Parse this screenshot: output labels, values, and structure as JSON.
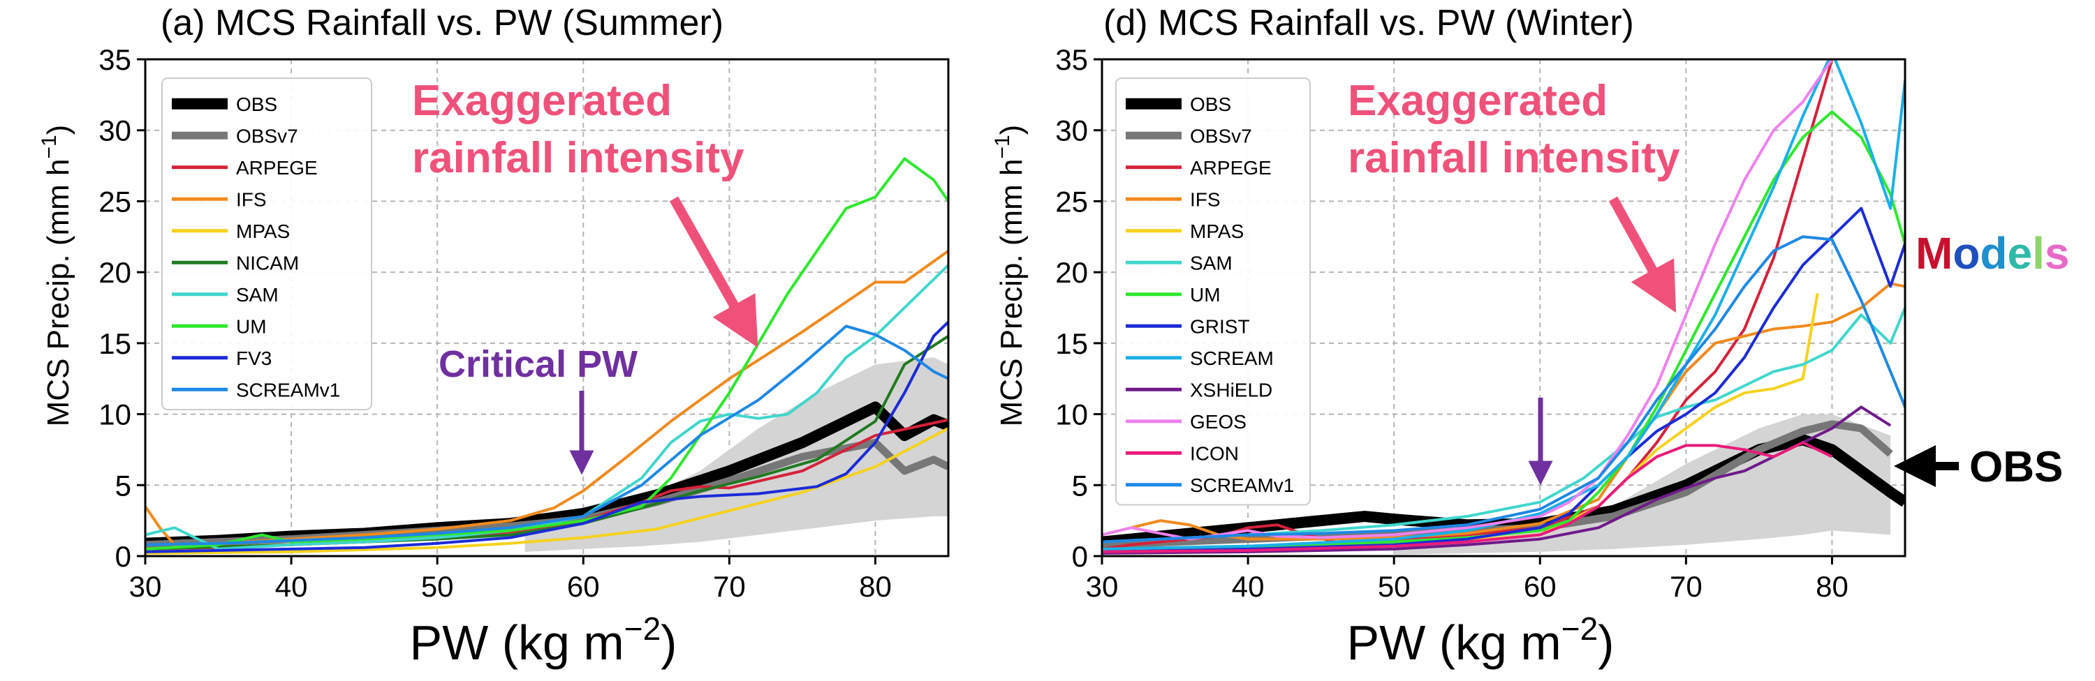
{
  "chart_data": [
    {
      "type": "line",
      "title": "(a) MCS Rainfall vs. PW (Summer)",
      "xlabel": "PW (kg m",
      "xlabel_sup": "−2",
      "ylabel": "MCS Precip. (mm h",
      "ylabel_sup": "−1",
      "xlim": [
        30,
        85
      ],
      "ylim": [
        0,
        35
      ],
      "xticks": [
        "30",
        "40",
        "50",
        "60",
        "70",
        "80"
      ],
      "yticks": [
        "0",
        "5",
        "10",
        "15",
        "20",
        "25",
        "30",
        "35"
      ],
      "grid": true,
      "legend_position": "top-left",
      "annotations": {
        "exaggerated_line1": "Exaggerated",
        "exaggerated_line2": "rainfall intensity",
        "critical": "Critical PW"
      },
      "obs_band": {
        "x": [
          56,
          60,
          64,
          68,
          72,
          76,
          80,
          84,
          85
        ],
        "lower": [
          0.3,
          0.5,
          0.7,
          1.0,
          1.5,
          2.0,
          2.5,
          2.8,
          2.8
        ],
        "upper": [
          2.0,
          3.0,
          4.0,
          6.0,
          9.0,
          11.5,
          13.5,
          14.0,
          13.5
        ]
      },
      "series": [
        {
          "name": "OBS",
          "color": "#000000",
          "width": 16,
          "x": [
            30,
            35,
            40,
            45,
            50,
            55,
            60,
            65,
            70,
            75,
            80,
            82,
            84,
            85
          ],
          "y": [
            0.9,
            1.1,
            1.4,
            1.6,
            2.0,
            2.3,
            3.0,
            4.3,
            6.0,
            8.0,
            10.5,
            8.5,
            9.6,
            9.2
          ]
        },
        {
          "name": "OBSv7",
          "color": "#777777",
          "width": 11,
          "x": [
            30,
            35,
            40,
            45,
            50,
            55,
            60,
            65,
            70,
            75,
            80,
            82,
            84,
            85
          ],
          "y": [
            0.8,
            1.0,
            1.2,
            1.5,
            1.8,
            2.1,
            2.6,
            3.8,
            5.3,
            7.0,
            8.0,
            6.0,
            6.8,
            6.3
          ]
        },
        {
          "name": "ARPEGE",
          "color": "#d6213a",
          "width": 4,
          "x": [
            30,
            35,
            40,
            45,
            50,
            55,
            60,
            64,
            66,
            68,
            70,
            75,
            80,
            85
          ],
          "y": [
            0.5,
            0.6,
            0.8,
            1.0,
            1.3,
            1.7,
            2.5,
            3.8,
            4.6,
            4.9,
            4.8,
            6.0,
            8.5,
            9.6
          ]
        },
        {
          "name": "IFS",
          "color": "#f08a1c",
          "width": 4,
          "x": [
            30,
            31,
            32,
            35,
            40,
            45,
            50,
            55,
            58,
            60,
            63,
            66,
            70,
            75,
            80,
            82,
            85
          ],
          "y": [
            3.5,
            2.0,
            0.8,
            0.9,
            1.2,
            1.5,
            1.9,
            2.5,
            3.4,
            4.6,
            7.0,
            9.5,
            12.5,
            15.8,
            19.3,
            19.3,
            21.5
          ]
        },
        {
          "name": "MPAS",
          "color": "#f5d21e",
          "width": 4,
          "x": [
            30,
            40,
            50,
            55,
            60,
            65,
            70,
            75,
            80,
            85
          ],
          "y": [
            0.2,
            0.3,
            0.6,
            0.9,
            1.3,
            1.9,
            3.2,
            4.5,
            6.3,
            9.0
          ]
        },
        {
          "name": "NICAM",
          "color": "#1f7a1f",
          "width": 4,
          "x": [
            30,
            40,
            50,
            55,
            60,
            64,
            68,
            72,
            76,
            80,
            82,
            85
          ],
          "y": [
            0.5,
            0.8,
            1.2,
            1.5,
            2.3,
            3.4,
            4.6,
            5.6,
            6.8,
            9.5,
            13.5,
            15.5
          ]
        },
        {
          "name": "SAM",
          "color": "#40d6cc",
          "width": 4,
          "x": [
            30,
            32,
            35,
            40,
            45,
            50,
            55,
            60,
            64,
            66,
            68,
            70,
            72,
            74,
            76,
            78,
            80,
            82,
            85
          ],
          "y": [
            1.5,
            2.0,
            0.5,
            0.8,
            1.0,
            1.3,
            1.8,
            2.8,
            5.5,
            8.0,
            9.5,
            10.0,
            9.7,
            10.0,
            11.5,
            14.0,
            15.5,
            17.5,
            20.5
          ]
        },
        {
          "name": "UM",
          "color": "#2ee82e",
          "width": 4,
          "x": [
            30,
            35,
            38,
            40,
            45,
            50,
            55,
            60,
            64,
            66,
            68,
            70,
            72,
            74,
            78,
            80,
            82,
            84,
            85
          ],
          "y": [
            0.5,
            0.8,
            1.5,
            1.0,
            1.2,
            1.5,
            1.8,
            2.5,
            3.5,
            5.5,
            8.5,
            11.5,
            15.0,
            18.5,
            24.5,
            25.3,
            28.0,
            26.5,
            25.0
          ]
        },
        {
          "name": "FV3",
          "color": "#1b2bd8",
          "width": 4,
          "x": [
            30,
            35,
            40,
            45,
            50,
            55,
            60,
            64,
            68,
            72,
            76,
            78,
            80,
            82,
            84,
            85
          ],
          "y": [
            0.3,
            0.4,
            0.5,
            0.6,
            0.9,
            1.3,
            2.3,
            3.8,
            4.2,
            4.4,
            4.9,
            5.8,
            8.0,
            11.5,
            15.5,
            16.5
          ]
        },
        {
          "name": "SCREAMv1",
          "color": "#1e88e5",
          "width": 4,
          "x": [
            30,
            35,
            40,
            45,
            50,
            55,
            60,
            64,
            68,
            72,
            75,
            78,
            80,
            82,
            84,
            85
          ],
          "y": [
            0.8,
            0.9,
            1.1,
            1.3,
            1.6,
            2.0,
            2.8,
            5.0,
            8.5,
            11.0,
            13.5,
            16.2,
            15.6,
            14.5,
            13.0,
            12.5
          ]
        }
      ]
    },
    {
      "type": "line",
      "title": "(d) MCS Rainfall vs. PW (Winter)",
      "xlabel": "PW (kg m",
      "xlabel_sup": "−2",
      "ylabel": "MCS Precip. (mm h",
      "ylabel_sup": "−1",
      "xlim": [
        30,
        85
      ],
      "ylim": [
        0,
        35
      ],
      "xticks": [
        "30",
        "40",
        "50",
        "60",
        "70",
        "80"
      ],
      "yticks": [
        "0",
        "5",
        "10",
        "15",
        "20",
        "25",
        "30",
        "35"
      ],
      "grid": true,
      "legend_position": "top-left",
      "annotations": {
        "exaggerated_line1": "Exaggerated",
        "exaggerated_line2": "rainfall intensity",
        "models_label": "Models",
        "obs_label": "OBS"
      },
      "obs_band": {
        "x": [
          50,
          55,
          60,
          65,
          70,
          75,
          78,
          80,
          84
        ],
        "lower": [
          0.1,
          0.2,
          0.3,
          0.5,
          0.8,
          1.2,
          1.5,
          1.8,
          1.5
        ],
        "upper": [
          1.5,
          2.0,
          2.5,
          3.5,
          6.5,
          9.0,
          10.0,
          10.0,
          8.5
        ]
      },
      "series": [
        {
          "name": "OBS",
          "color": "#000000",
          "width": 16,
          "x": [
            30,
            35,
            40,
            45,
            48,
            50,
            55,
            60,
            65,
            70,
            75,
            78,
            80,
            82,
            84,
            85
          ],
          "y": [
            1.0,
            1.5,
            2.0,
            2.5,
            2.8,
            2.6,
            2.2,
            2.3,
            3.2,
            5.0,
            7.5,
            8.2,
            7.5,
            6.0,
            4.5,
            3.8
          ]
        },
        {
          "name": "OBSv7",
          "color": "#777777",
          "width": 11,
          "x": [
            30,
            35,
            40,
            45,
            50,
            55,
            60,
            65,
            70,
            75,
            78,
            80,
            82,
            84
          ],
          "y": [
            0.8,
            1.0,
            1.2,
            1.4,
            1.6,
            1.8,
            2.0,
            2.8,
            4.5,
            7.5,
            8.8,
            9.3,
            9.0,
            7.2
          ]
        },
        {
          "name": "ARPEGE",
          "color": "#d6213a",
          "width": 4,
          "x": [
            30,
            32,
            34,
            36,
            38,
            40,
            42,
            44,
            46,
            50,
            55,
            60,
            64,
            66,
            68,
            70,
            72,
            74,
            76,
            78,
            80
          ],
          "y": [
            0.5,
            0.8,
            1.0,
            1.2,
            1.4,
            2.0,
            2.2,
            1.5,
            1.0,
            1.2,
            1.5,
            2.0,
            3.5,
            5.5,
            8.0,
            11.0,
            13.0,
            16.0,
            21.0,
            28.0,
            35.0
          ]
        },
        {
          "name": "IFS",
          "color": "#f08a1c",
          "width": 4,
          "x": [
            30,
            32,
            34,
            36,
            38,
            40,
            45,
            50,
            55,
            60,
            64,
            66,
            68,
            70,
            72,
            74,
            76,
            78,
            80,
            82,
            84,
            85
          ],
          "y": [
            1.5,
            2.0,
            2.5,
            2.2,
            1.5,
            1.2,
            1.2,
            1.3,
            1.6,
            2.3,
            4.0,
            7.0,
            10.0,
            13.0,
            15.0,
            15.5,
            16.0,
            16.2,
            16.5,
            17.5,
            19.2,
            19.0
          ]
        },
        {
          "name": "MPAS",
          "color": "#f5d21e",
          "width": 4,
          "x": [
            30,
            40,
            50,
            55,
            60,
            64,
            68,
            70,
            72,
            74,
            76,
            78,
            79
          ],
          "y": [
            0.4,
            0.6,
            0.8,
            1.1,
            1.5,
            3.5,
            7.5,
            9.0,
            10.5,
            11.5,
            11.8,
            12.5,
            18.5
          ]
        },
        {
          "name": "SAM",
          "color": "#40d6cc",
          "width": 4,
          "x": [
            30,
            40,
            45,
            50,
            55,
            60,
            63,
            66,
            68,
            70,
            72,
            74,
            76,
            78,
            80,
            82,
            84,
            85
          ],
          "y": [
            1.0,
            1.5,
            1.8,
            2.2,
            2.8,
            3.8,
            5.5,
            8.0,
            9.8,
            10.5,
            11.0,
            12.0,
            13.0,
            13.5,
            14.5,
            17.0,
            15.0,
            17.5
          ]
        },
        {
          "name": "UM",
          "color": "#2ee82e",
          "width": 4,
          "x": [
            30,
            40,
            50,
            55,
            60,
            62,
            64,
            66,
            68,
            70,
            72,
            74,
            76,
            78,
            80,
            82,
            84,
            85
          ],
          "y": [
            0.5,
            0.7,
            1.0,
            1.3,
            1.8,
            2.5,
            4.5,
            7.0,
            10.5,
            14.5,
            18.5,
            22.5,
            26.5,
            29.5,
            31.3,
            29.5,
            25.5,
            22.0
          ]
        },
        {
          "name": "GRIST",
          "color": "#1b2bd8",
          "width": 4,
          "x": [
            30,
            40,
            50,
            55,
            60,
            62,
            64,
            66,
            68,
            70,
            72,
            74,
            76,
            78,
            80,
            82,
            84,
            85
          ],
          "y": [
            0.3,
            0.5,
            0.8,
            1.2,
            2.0,
            3.0,
            5.0,
            7.0,
            8.8,
            10.0,
            11.5,
            14.0,
            17.5,
            20.5,
            22.5,
            24.5,
            19.0,
            22.0
          ]
        },
        {
          "name": "SCREAM",
          "color": "#1ab0e8",
          "width": 4,
          "x": [
            30,
            40,
            50,
            55,
            60,
            64,
            66,
            68,
            70,
            72,
            74,
            76,
            78,
            80,
            82,
            84,
            85
          ],
          "y": [
            0.5,
            0.7,
            1.2,
            1.8,
            3.0,
            5.0,
            7.0,
            10.0,
            13.5,
            17.0,
            21.5,
            26.0,
            31.0,
            35.5,
            30.5,
            24.5,
            33.5
          ]
        },
        {
          "name": "XSHiELD",
          "color": "#6f1a8a",
          "width": 4,
          "x": [
            30,
            40,
            50,
            55,
            60,
            64,
            66,
            68,
            70,
            72,
            74,
            76,
            78,
            80,
            82,
            84
          ],
          "y": [
            0.2,
            0.3,
            0.5,
            0.8,
            1.2,
            2.0,
            3.0,
            4.0,
            4.8,
            5.5,
            6.0,
            7.0,
            8.0,
            9.0,
            10.5,
            9.2
          ]
        },
        {
          "name": "GEOS",
          "color": "#ee82ee",
          "width": 4,
          "x": [
            30,
            32,
            34,
            36,
            38,
            40,
            42,
            45,
            50,
            55,
            60,
            62,
            64,
            66,
            68,
            70,
            72,
            74,
            76,
            78,
            80
          ],
          "y": [
            1.5,
            2.0,
            1.6,
            1.2,
            1.5,
            1.8,
            1.4,
            1.3,
            1.5,
            2.0,
            2.8,
            3.8,
            5.5,
            8.5,
            12.0,
            17.0,
            22.0,
            26.5,
            30.0,
            32.0,
            35.0
          ]
        },
        {
          "name": "ICON",
          "color": "#ea1a7a",
          "width": 4,
          "x": [
            30,
            40,
            50,
            55,
            60,
            62,
            64,
            66,
            68,
            70,
            72,
            74,
            76,
            78,
            80
          ],
          "y": [
            0.3,
            0.4,
            0.7,
            1.0,
            1.5,
            2.3,
            3.5,
            5.5,
            7.0,
            7.8,
            7.8,
            7.5,
            7.0,
            8.0,
            7.0
          ]
        },
        {
          "name": "SCREAMv1",
          "color": "#1e88e5",
          "width": 4,
          "x": [
            30,
            40,
            45,
            50,
            55,
            60,
            64,
            66,
            68,
            70,
            72,
            74,
            76,
            78,
            80,
            82,
            84,
            85
          ],
          "y": [
            1.0,
            1.5,
            1.6,
            1.8,
            2.2,
            3.3,
            5.5,
            8.0,
            11.0,
            13.5,
            16.0,
            19.0,
            21.5,
            22.5,
            22.3,
            18.0,
            13.0,
            10.5
          ]
        }
      ]
    }
  ]
}
